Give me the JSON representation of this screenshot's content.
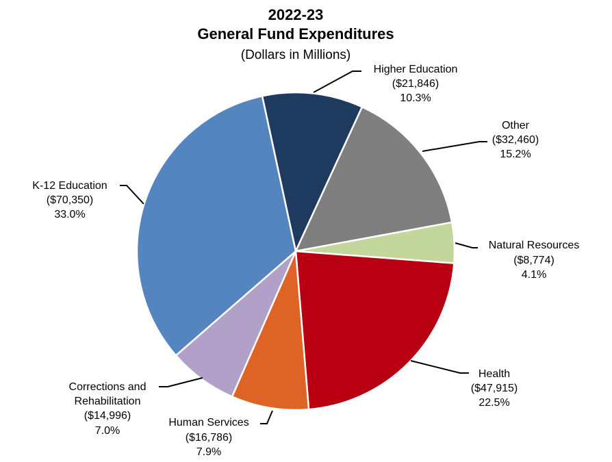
{
  "chart_data": {
    "type": "pie",
    "title": "2022-23",
    "subtitle": "General Fund Expenditures",
    "unit_note": "(Dollars in Millions)",
    "slices": [
      {
        "name": "Higher Education",
        "value": 21846,
        "value_label": "($21,846)",
        "percent_label": "10.3%",
        "color": "#1f3a5f"
      },
      {
        "name": "Other",
        "value": 32460,
        "value_label": "($32,460)",
        "percent_label": "15.2%",
        "color": "#7f7f7f"
      },
      {
        "name": "Natural Resources",
        "value": 8774,
        "value_label": "($8,774)",
        "percent_label": "4.1%",
        "color": "#c3d69b"
      },
      {
        "name": "Health",
        "value": 47915,
        "value_label": "($47,915)",
        "percent_label": "22.5%",
        "color": "#b90012"
      },
      {
        "name": "Human Services",
        "value": 16786,
        "value_label": "($16,786)",
        "percent_label": "7.9%",
        "color": "#de6326"
      },
      {
        "name": "Corrections and Rehabilitation",
        "name_lines": [
          "Corrections and",
          "Rehabilitation"
        ],
        "value": 14996,
        "value_label": "($14,996)",
        "percent_label": "7.0%",
        "color": "#b1a0c7"
      },
      {
        "name": "K-12 Education",
        "value": 70350,
        "value_label": "($70,350)",
        "percent_label": "33.0%",
        "color": "#5585bf"
      }
    ]
  }
}
